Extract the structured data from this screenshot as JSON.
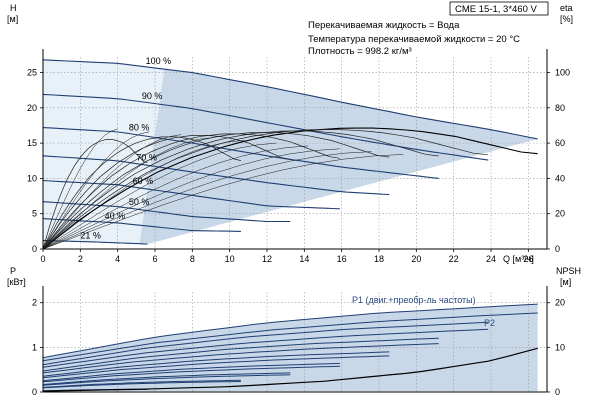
{
  "chart_data": [
    {
      "type": "line",
      "title": "CME 15-1, 3*460 V",
      "info_lines": [
        "Перекачиваемая жидкость = Вода",
        "Температура перекачиваемой жидкости = 20 °C",
        "Плотность = 998.2 кг/м³"
      ],
      "xlabel": "Q [м³/ч]",
      "ylabel_left_top": "H",
      "ylabel_left_unit": "[м]",
      "ylabel_right_top": "eta",
      "ylabel_right_unit": "[%]",
      "xlim": [
        0,
        27
      ],
      "ylim": [
        0,
        27.2
      ],
      "ylim_right": [
        0,
        108.8
      ],
      "xticks": [
        0,
        2,
        4,
        6,
        8,
        10,
        12,
        14,
        16,
        18,
        20,
        22,
        24,
        26
      ],
      "yticks": [
        0,
        5,
        10,
        15,
        20,
        25
      ],
      "yticks_right": [
        0,
        20,
        40,
        60,
        80,
        100
      ],
      "curve_labels": [
        "100 %",
        "90 %",
        "80 %",
        "70 %",
        "60 %",
        "50 %",
        "40 %",
        "21 %"
      ],
      "series": [
        {
          "name": "100 %",
          "speed": 1.0,
          "x": [
            0,
            4,
            8,
            12,
            16,
            20,
            24,
            26.5
          ],
          "y": [
            26.8,
            26.3,
            25.0,
            23.0,
            20.8,
            18.7,
            16.9,
            15.6
          ]
        },
        {
          "name": "90 %",
          "speed": 0.9,
          "x": [
            0,
            4,
            8,
            12,
            16,
            20,
            23.85
          ],
          "y": [
            21.9,
            21.3,
            19.9,
            17.9,
            15.9,
            14.1,
            12.6
          ]
        },
        {
          "name": "80 %",
          "speed": 0.8,
          "x": [
            0,
            4,
            8,
            12,
            16,
            21.2
          ],
          "y": [
            17.2,
            16.6,
            15.0,
            13.2,
            11.6,
            10.0
          ]
        },
        {
          "name": "70 %",
          "speed": 0.7,
          "x": [
            0,
            4,
            8,
            12,
            16,
            18.55
          ],
          "y": [
            13.2,
            12.5,
            10.9,
            9.4,
            8.1,
            7.7
          ]
        },
        {
          "name": "60 %",
          "speed": 0.6,
          "x": [
            0,
            4,
            8,
            12,
            15.9
          ],
          "y": [
            9.7,
            9.1,
            7.6,
            6.1,
            5.7
          ]
        },
        {
          "name": "50 %",
          "speed": 0.5,
          "x": [
            0,
            4,
            8,
            12,
            13.25
          ],
          "y": [
            6.7,
            6.0,
            4.6,
            3.9,
            3.9
          ]
        },
        {
          "name": "40 %",
          "speed": 0.4,
          "x": [
            0,
            4,
            8,
            10.6
          ],
          "y": [
            4.3,
            3.7,
            2.6,
            2.5
          ]
        },
        {
          "name": "21 %",
          "speed": 0.21,
          "x": [
            0,
            2.8,
            5.6
          ],
          "y": [
            1.2,
            1.0,
            0.7
          ]
        }
      ],
      "efficiency_series": {
        "name": "eta",
        "x": [
          0,
          2,
          4,
          6,
          8,
          10,
          12,
          14,
          16,
          18,
          20,
          22,
          24,
          26
        ],
        "y": [
          0,
          17,
          31,
          43,
          52,
          59,
          64,
          67,
          68.5,
          68.5,
          67,
          64,
          59,
          54
        ]
      }
    },
    {
      "type": "line",
      "ylabel_left_top": "P",
      "ylabel_left_unit": "[кВт]",
      "ylabel_right_top": "NPSH",
      "ylabel_right_unit": "[м]",
      "xlim": [
        0,
        27
      ],
      "ylim": [
        0,
        2.24
      ],
      "ylim_right": [
        0,
        22.4
      ],
      "yticks": [
        0,
        1,
        2
      ],
      "yticks_right": [
        0,
        10,
        20
      ],
      "p1_label": "P1 (двиг.+преобр-ль частоты)",
      "p2_label": "P2",
      "series": [
        {
          "name": "P1 100 %",
          "x": [
            0,
            6,
            12,
            18,
            24,
            26.5
          ],
          "y": [
            0.77,
            1.23,
            1.55,
            1.77,
            1.91,
            1.97
          ]
        },
        {
          "name": "P2 100 %",
          "x": [
            0,
            6,
            12,
            18,
            24,
            26.5
          ],
          "y": [
            0.7,
            1.1,
            1.38,
            1.58,
            1.72,
            1.77
          ]
        }
      ],
      "npsh_series": {
        "name": "NPSH",
        "x": [
          0,
          5,
          10,
          15,
          20,
          24,
          26.5
        ],
        "y": [
          0.2,
          0.6,
          1.2,
          2.4,
          4.4,
          7.0,
          9.8
        ]
      }
    }
  ]
}
